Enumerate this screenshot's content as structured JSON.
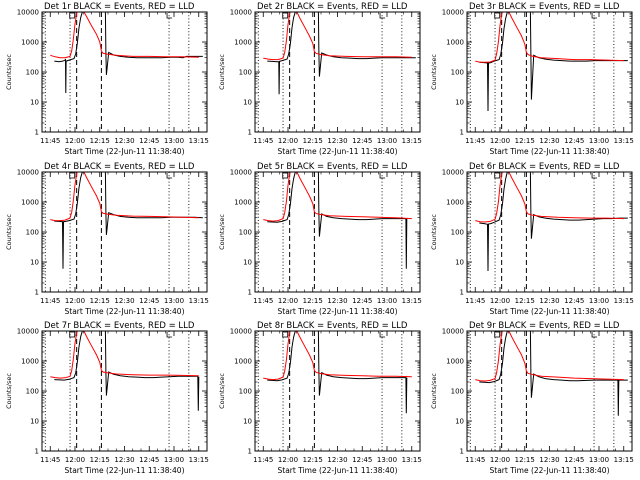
{
  "chart_data": {
    "type": "line",
    "layout": "3x3 grid",
    "y_scale": "log",
    "ylim": [
      1,
      10000
    ],
    "y_ticks": [
      1,
      10,
      100,
      1000,
      10000
    ],
    "y_tick_labels": [
      "1",
      "10",
      "100",
      "1000",
      "10000"
    ],
    "ylabel": "Counts/sec",
    "xlabel": "Start Time (22-Jun-11 11:38:40)",
    "xlim_minutes": [
      -5,
      95
    ],
    "x_ticks_minutes": [
      0,
      15,
      30,
      45,
      60,
      75,
      90
    ],
    "x_tick_labels": [
      "11:45",
      "12:00",
      "12:15",
      "12:30",
      "12:45",
      "13:00",
      "13:15"
    ],
    "dotted_lines_minutes": [
      -3,
      12,
      72,
      84
    ],
    "dashed_lines_minutes": [
      16,
      31
    ],
    "series_legend": {
      "events": "BLACK = Events",
      "lld": "RED = LLD"
    },
    "colors": {
      "events": "#000000",
      "lld": "#ff0000"
    },
    "panels": [
      {
        "title": "Det 1r BLACK = Events, RED = LLD",
        "events": {
          "x": [
            0,
            3,
            5,
            6,
            6.8,
            7,
            7.2,
            9,
            12,
            13,
            14,
            15,
            16,
            17,
            31,
            31.3,
            31.6,
            33,
            36,
            40,
            45,
            50,
            55,
            60,
            65,
            70,
            75,
            78,
            80,
            85,
            90
          ],
          "y": [
            230,
            220,
            230,
            240,
            260,
            20,
            230,
            250,
            280,
            400,
            900,
            3000,
            6500,
            10000,
            10000,
            400,
            80,
            450,
            370,
            330,
            310,
            300,
            300,
            300,
            300,
            310,
            310,
            300,
            330,
            330,
            330
          ]
        },
        "lld": {
          "x": [
            0,
            3,
            6,
            9,
            12,
            13,
            14,
            15,
            16,
            17,
            19,
            20,
            22,
            25,
            28,
            30,
            31,
            32,
            35,
            40,
            50,
            60,
            70,
            80,
            90
          ],
          "y": [
            360,
            320,
            300,
            300,
            330,
            500,
            1200,
            4000,
            9000,
            14000,
            14000,
            11000,
            7000,
            3500,
            1800,
            1000,
            500,
            420,
            390,
            360,
            330,
            330,
            320,
            320,
            310
          ]
        }
      },
      {
        "title": "Det 2r BLACK = Events, RED = LLD",
        "events": {
          "x": [
            0,
            3,
            6,
            7,
            7.2,
            7.4,
            9,
            12,
            13,
            14,
            15,
            16,
            17,
            31,
            31.3,
            31.6,
            33,
            36,
            40,
            45,
            50,
            55,
            60,
            65,
            70,
            75,
            78,
            80,
            85,
            90
          ],
          "y": [
            230,
            225,
            220,
            220,
            18,
            225,
            240,
            270,
            400,
            900,
            3000,
            6500,
            10000,
            10000,
            400,
            70,
            430,
            370,
            320,
            300,
            290,
            280,
            280,
            290,
            300,
            300,
            300,
            300,
            300,
            300
          ]
        },
        "lld": {
          "x": [
            0,
            3,
            6,
            9,
            12,
            13,
            14,
            15,
            16,
            17,
            20,
            22,
            25,
            28,
            30,
            31,
            32,
            35,
            40,
            50,
            60,
            70,
            80,
            90
          ],
          "y": [
            290,
            270,
            260,
            260,
            290,
            450,
            1100,
            3800,
            8500,
            14000,
            11000,
            6500,
            3200,
            1600,
            900,
            480,
            420,
            380,
            350,
            330,
            320,
            320,
            320,
            310
          ]
        }
      },
      {
        "title": "Det 3r BLACK = Events, RED = LLD",
        "events": {
          "x": [
            0,
            3,
            5,
            5.3,
            5.6,
            7,
            9,
            12,
            13,
            14,
            15,
            16,
            17,
            31,
            31.3,
            31.6,
            33,
            36,
            40,
            45,
            50,
            55,
            60,
            65,
            70,
            75,
            80,
            85,
            90
          ],
          "y": [
            210,
            205,
            200,
            5,
            200,
            205,
            230,
            260,
            380,
            850,
            2800,
            6000,
            10000,
            10000,
            350,
            12,
            360,
            300,
            270,
            250,
            240,
            230,
            230,
            230,
            240,
            240,
            240,
            240,
            240
          ]
        },
        "lld": {
          "x": [
            0,
            3,
            6,
            9,
            12,
            13,
            14,
            15,
            16,
            17,
            20,
            22,
            25,
            28,
            30,
            31,
            32,
            35,
            40,
            50,
            60,
            70,
            80,
            90
          ],
          "y": [
            230,
            210,
            210,
            215,
            250,
            420,
            1000,
            3500,
            8000,
            14000,
            11000,
            6500,
            3200,
            1600,
            850,
            450,
            380,
            330,
            300,
            280,
            260,
            260,
            250,
            240
          ]
        }
      },
      {
        "title": "Det 4r BLACK = Events, RED = LLD",
        "events": {
          "x": [
            0,
            3,
            5,
            5.3,
            5.6,
            7,
            9,
            12,
            13,
            14,
            15,
            16,
            17,
            31,
            31.3,
            31.6,
            33,
            36,
            40,
            45,
            50,
            55,
            60,
            65,
            70,
            75,
            80,
            85,
            90
          ],
          "y": [
            230,
            225,
            220,
            6,
            220,
            225,
            240,
            270,
            400,
            900,
            3000,
            6500,
            10000,
            10000,
            420,
            80,
            440,
            380,
            330,
            310,
            300,
            300,
            300,
            300,
            310,
            310,
            310,
            310,
            300
          ]
        },
        "lld": {
          "x": [
            0,
            3,
            6,
            9,
            12,
            13,
            14,
            15,
            16,
            17,
            20,
            22,
            25,
            28,
            30,
            31,
            32,
            35,
            40,
            50,
            60,
            70,
            80,
            90
          ],
          "y": [
            260,
            240,
            240,
            250,
            290,
            460,
            1100,
            3800,
            8500,
            14000,
            11000,
            6500,
            3200,
            1600,
            900,
            480,
            420,
            390,
            360,
            340,
            330,
            320,
            310,
            300
          ]
        }
      },
      {
        "title": "Det 5r BLACK = Events, RED = LLD",
        "events": {
          "x": [
            0,
            3,
            6,
            9,
            12,
            13,
            14,
            15,
            16,
            17,
            31,
            31.3,
            31.6,
            33,
            36,
            40,
            45,
            50,
            55,
            60,
            65,
            70,
            75,
            80,
            84,
            84.3,
            84.6
          ],
          "y": [
            220,
            215,
            210,
            225,
            260,
            380,
            850,
            2800,
            6000,
            10000,
            10000,
            380,
            70,
            400,
            330,
            300,
            280,
            270,
            260,
            260,
            270,
            280,
            280,
            280,
            280,
            6,
            280
          ]
        },
        "lld": {
          "x": [
            0,
            3,
            6,
            9,
            12,
            13,
            14,
            15,
            16,
            17,
            20,
            22,
            25,
            28,
            30,
            31,
            32,
            35,
            40,
            50,
            60,
            70,
            80,
            90
          ],
          "y": [
            260,
            240,
            230,
            240,
            280,
            440,
            1050,
            3600,
            8200,
            14000,
            11000,
            6500,
            3200,
            1600,
            880,
            470,
            410,
            380,
            350,
            330,
            320,
            310,
            300,
            280
          ]
        }
      },
      {
        "title": "Det 6r BLACK = Events, RED = LLD",
        "events": {
          "x": [
            0,
            3,
            5,
            5.3,
            5.6,
            7,
            9,
            12,
            13,
            14,
            15,
            16,
            17,
            31,
            31.3,
            31.6,
            33,
            36,
            40,
            45,
            50,
            55,
            60,
            65,
            70,
            75,
            80,
            85,
            90
          ],
          "y": [
            200,
            190,
            180,
            5,
            185,
            190,
            210,
            250,
            370,
            820,
            2700,
            5800,
            10000,
            10000,
            360,
            60,
            380,
            320,
            290,
            270,
            260,
            250,
            250,
            260,
            270,
            280,
            280,
            290,
            290
          ]
        },
        "lld": {
          "x": [
            0,
            3,
            6,
            9,
            12,
            13,
            14,
            15,
            16,
            17,
            20,
            22,
            25,
            28,
            30,
            31,
            32,
            35,
            40,
            50,
            60,
            70,
            80,
            90
          ],
          "y": [
            240,
            220,
            215,
            225,
            265,
            430,
            1000,
            3500,
            8000,
            14000,
            11000,
            6500,
            3200,
            1600,
            870,
            470,
            400,
            360,
            330,
            310,
            300,
            290,
            290,
            280
          ]
        }
      },
      {
        "title": "Det 7r BLACK = Events, RED = LLD",
        "events": {
          "x": [
            0,
            3,
            6,
            9,
            12,
            13,
            14,
            15,
            16,
            17,
            31,
            31.3,
            31.6,
            33,
            36,
            40,
            45,
            50,
            55,
            60,
            65,
            70,
            75,
            80,
            85,
            87,
            87.3,
            87.6
          ],
          "y": [
            240,
            235,
            230,
            245,
            280,
            400,
            900,
            3000,
            6500,
            10000,
            10000,
            400,
            70,
            430,
            360,
            320,
            300,
            290,
            280,
            280,
            290,
            300,
            310,
            310,
            310,
            310,
            22,
            300
          ]
        },
        "lld": {
          "x": [
            0,
            3,
            6,
            9,
            12,
            13,
            14,
            15,
            16,
            17,
            20,
            22,
            25,
            28,
            30,
            31,
            32,
            35,
            40,
            50,
            60,
            70,
            80,
            90
          ],
          "y": [
            300,
            280,
            270,
            275,
            310,
            480,
            1150,
            3900,
            8600,
            14000,
            11000,
            6500,
            3200,
            1600,
            900,
            490,
            430,
            400,
            370,
            350,
            340,
            340,
            330,
            320
          ]
        }
      },
      {
        "title": "Det 8r BLACK = Events, RED = LLD",
        "events": {
          "x": [
            0,
            3,
            6,
            9,
            12,
            13,
            14,
            15,
            16,
            17,
            31,
            31.3,
            31.6,
            33,
            36,
            40,
            45,
            50,
            55,
            60,
            65,
            70,
            75,
            80,
            84,
            84.3,
            84.6
          ],
          "y": [
            230,
            225,
            220,
            235,
            270,
            390,
            870,
            2900,
            6200,
            10000,
            10000,
            390,
            70,
            410,
            340,
            300,
            280,
            270,
            260,
            260,
            270,
            280,
            280,
            280,
            280,
            18,
            280
          ]
        },
        "lld": {
          "x": [
            0,
            3,
            6,
            9,
            12,
            13,
            14,
            15,
            16,
            17,
            20,
            22,
            25,
            28,
            30,
            31,
            32,
            35,
            40,
            50,
            60,
            70,
            80,
            90
          ],
          "y": [
            270,
            250,
            240,
            250,
            290,
            460,
            1100,
            3700,
            8400,
            14000,
            11000,
            6500,
            3200,
            1600,
            890,
            480,
            420,
            380,
            350,
            330,
            320,
            310,
            310,
            300
          ]
        }
      },
      {
        "title": "Det 9r BLACK = Events, RED = LLD",
        "events": {
          "x": [
            0,
            3,
            6,
            9,
            12,
            13,
            14,
            15,
            16,
            17,
            31,
            31.3,
            31.6,
            33,
            36,
            40,
            45,
            50,
            55,
            60,
            65,
            70,
            75,
            80,
            84,
            84.3,
            84.6,
            87,
            90
          ],
          "y": [
            200,
            195,
            190,
            205,
            240,
            360,
            800,
            2700,
            5800,
            10000,
            10000,
            360,
            60,
            370,
            300,
            260,
            240,
            230,
            220,
            220,
            225,
            230,
            230,
            230,
            230,
            15,
            230,
            230,
            230
          ]
        },
        "lld": {
          "x": [
            0,
            3,
            6,
            9,
            12,
            13,
            14,
            15,
            16,
            17,
            20,
            22,
            25,
            28,
            30,
            31,
            32,
            35,
            40,
            50,
            60,
            70,
            80,
            90
          ],
          "y": [
            240,
            220,
            215,
            225,
            260,
            420,
            1000,
            3400,
            7800,
            14000,
            11000,
            6500,
            3200,
            1600,
            860,
            460,
            390,
            350,
            310,
            290,
            270,
            260,
            250,
            240
          ]
        }
      }
    ]
  }
}
